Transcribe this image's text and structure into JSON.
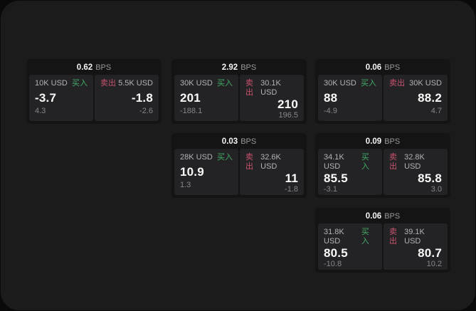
{
  "page": {
    "background": "#0a0a0b",
    "panel_background": "#1b1b1c"
  },
  "labels": {
    "bps": "BPS",
    "buy": "买入",
    "sell": "卖出"
  },
  "colors": {
    "buy_green": "#43ab68",
    "sell_red": "#c9536e",
    "card_bg": "#141415",
    "cell_bg": "#232325",
    "value_white": "#fafafa",
    "label_gray": "#b3b3b5",
    "sub_gray": "#87878a"
  },
  "cards": [
    {
      "bps_value": "0.62",
      "buy": {
        "amount": "10K USD",
        "price": "-3.7",
        "delta": "4.3"
      },
      "sell": {
        "amount": "5.5K USD",
        "price": "-1.8",
        "delta": "-2.6"
      }
    },
    {
      "bps_value": "2.92",
      "buy": {
        "amount": "30K USD",
        "price": "201",
        "delta": "-188.1"
      },
      "sell": {
        "amount": "30.1K USD",
        "price": "210",
        "delta": "196.5"
      }
    },
    {
      "bps_value": "0.06",
      "buy": {
        "amount": "30K USD",
        "price": "88",
        "delta": "-4.9"
      },
      "sell": {
        "amount": "30K USD",
        "price": "88.2",
        "delta": "4.7"
      }
    },
    {
      "bps_value": "0.03",
      "buy": {
        "amount": "28K USD",
        "price": "10.9",
        "delta": "1.3"
      },
      "sell": {
        "amount": "32.6K USD",
        "price": "11",
        "delta": "-1.8"
      }
    },
    {
      "bps_value": "0.09",
      "buy": {
        "amount": "34.1K USD",
        "price": "85.5",
        "delta": "-3.1"
      },
      "sell": {
        "amount": "32.8K USD",
        "price": "85.8",
        "delta": "3.0"
      }
    },
    {
      "bps_value": "0.06",
      "buy": {
        "amount": "31.8K USD",
        "price": "80.5",
        "delta": "-10.8"
      },
      "sell": {
        "amount": "39.1K USD",
        "price": "80.7",
        "delta": "10.2"
      }
    }
  ]
}
